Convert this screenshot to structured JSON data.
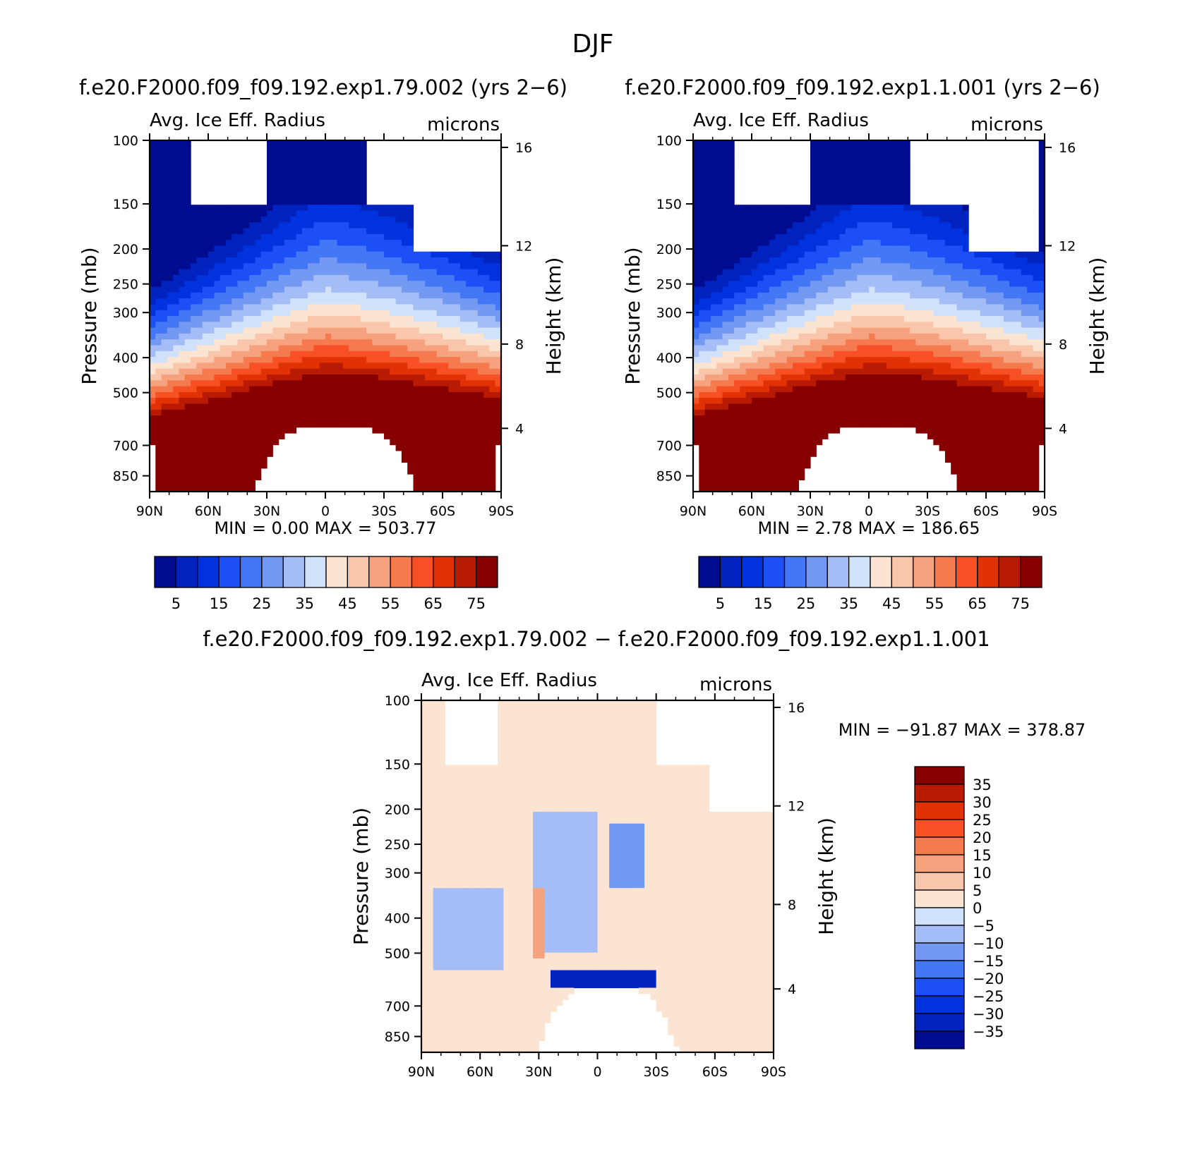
{
  "figure": {
    "season": "DJF",
    "bottom_title": "f.e20.F2000.f09_f09.192.exp1.79.002 − f.e20.F2000.f09_f09.192.exp1.1.001"
  },
  "chart_data": [
    {
      "type": "contour",
      "title": "f.e20.F2000.f09_f09.192.exp1.79.002 (yrs 2−6)",
      "left_label": "Avg. Ice Eff. Radius",
      "right_label": "microns",
      "xlabel": "",
      "ylabel": "Pressure (mb)",
      "ylabel_right": "Height (km)",
      "x_ticks": [
        "90N",
        "60N",
        "30N",
        "0",
        "30S",
        "60S",
        "90S"
      ],
      "y_ticks": [
        "100",
        "150",
        "200",
        "250",
        "300",
        "400",
        "500",
        "700",
        "850"
      ],
      "height_ticks": [
        "16",
        "12",
        "8",
        "4"
      ],
      "min_max": "MIN =     0.00   MAX = 503.77",
      "colorbar_labels": [
        "5",
        "15",
        "25",
        "35",
        "45",
        "55",
        "65",
        "75"
      ],
      "levels": [
        0,
        5,
        10,
        15,
        20,
        25,
        30,
        35,
        40,
        45,
        50,
        55,
        60,
        65,
        70,
        75
      ],
      "colors": {
        "low": "#000c8f",
        "high": "#860000"
      }
    },
    {
      "type": "contour",
      "title": "f.e20.F2000.f09_f09.192.exp1.1.001 (yrs 2−6)",
      "left_label": "Avg. Ice Eff. Radius",
      "right_label": "microns",
      "xlabel": "",
      "ylabel": "Pressure (mb)",
      "ylabel_right": "Height (km)",
      "x_ticks": [
        "90N",
        "60N",
        "30N",
        "0",
        "30S",
        "60S",
        "90S"
      ],
      "y_ticks": [
        "100",
        "150",
        "200",
        "250",
        "300",
        "400",
        "500",
        "700",
        "850"
      ],
      "height_ticks": [
        "16",
        "12",
        "8",
        "4"
      ],
      "min_max": "MIN =     2.78   MAX = 186.65",
      "colorbar_labels": [
        "5",
        "15",
        "25",
        "35",
        "45",
        "55",
        "65",
        "75"
      ],
      "levels": [
        0,
        5,
        10,
        15,
        20,
        25,
        30,
        35,
        40,
        45,
        50,
        55,
        60,
        65,
        70,
        75
      ],
      "colors": {
        "low": "#000c8f",
        "high": "#860000"
      }
    },
    {
      "type": "contour",
      "title": "",
      "left_label": "Avg. Ice Eff. Radius",
      "right_label": "microns",
      "xlabel": "",
      "ylabel": "Pressure (mb)",
      "ylabel_right": "Height (km)",
      "x_ticks": [
        "90N",
        "60N",
        "30N",
        "0",
        "30S",
        "60S",
        "90S"
      ],
      "y_ticks": [
        "100",
        "150",
        "200",
        "250",
        "300",
        "400",
        "500",
        "700",
        "850"
      ],
      "height_ticks": [
        "16",
        "12",
        "8",
        "4"
      ],
      "min_max": "MIN = −91.87   MAX = 378.87",
      "colorbar_labels": [
        "35",
        "30",
        "25",
        "20",
        "15",
        "10",
        "5",
        "0",
        "−5",
        "−10",
        "−15",
        "−20",
        "−25",
        "−30",
        "−35"
      ],
      "levels": [
        -35,
        -30,
        -25,
        -20,
        -15,
        -10,
        -5,
        0,
        5,
        10,
        15,
        20,
        25,
        30,
        35
      ],
      "colors": {
        "low": "#000c8f",
        "high": "#860000"
      }
    }
  ]
}
